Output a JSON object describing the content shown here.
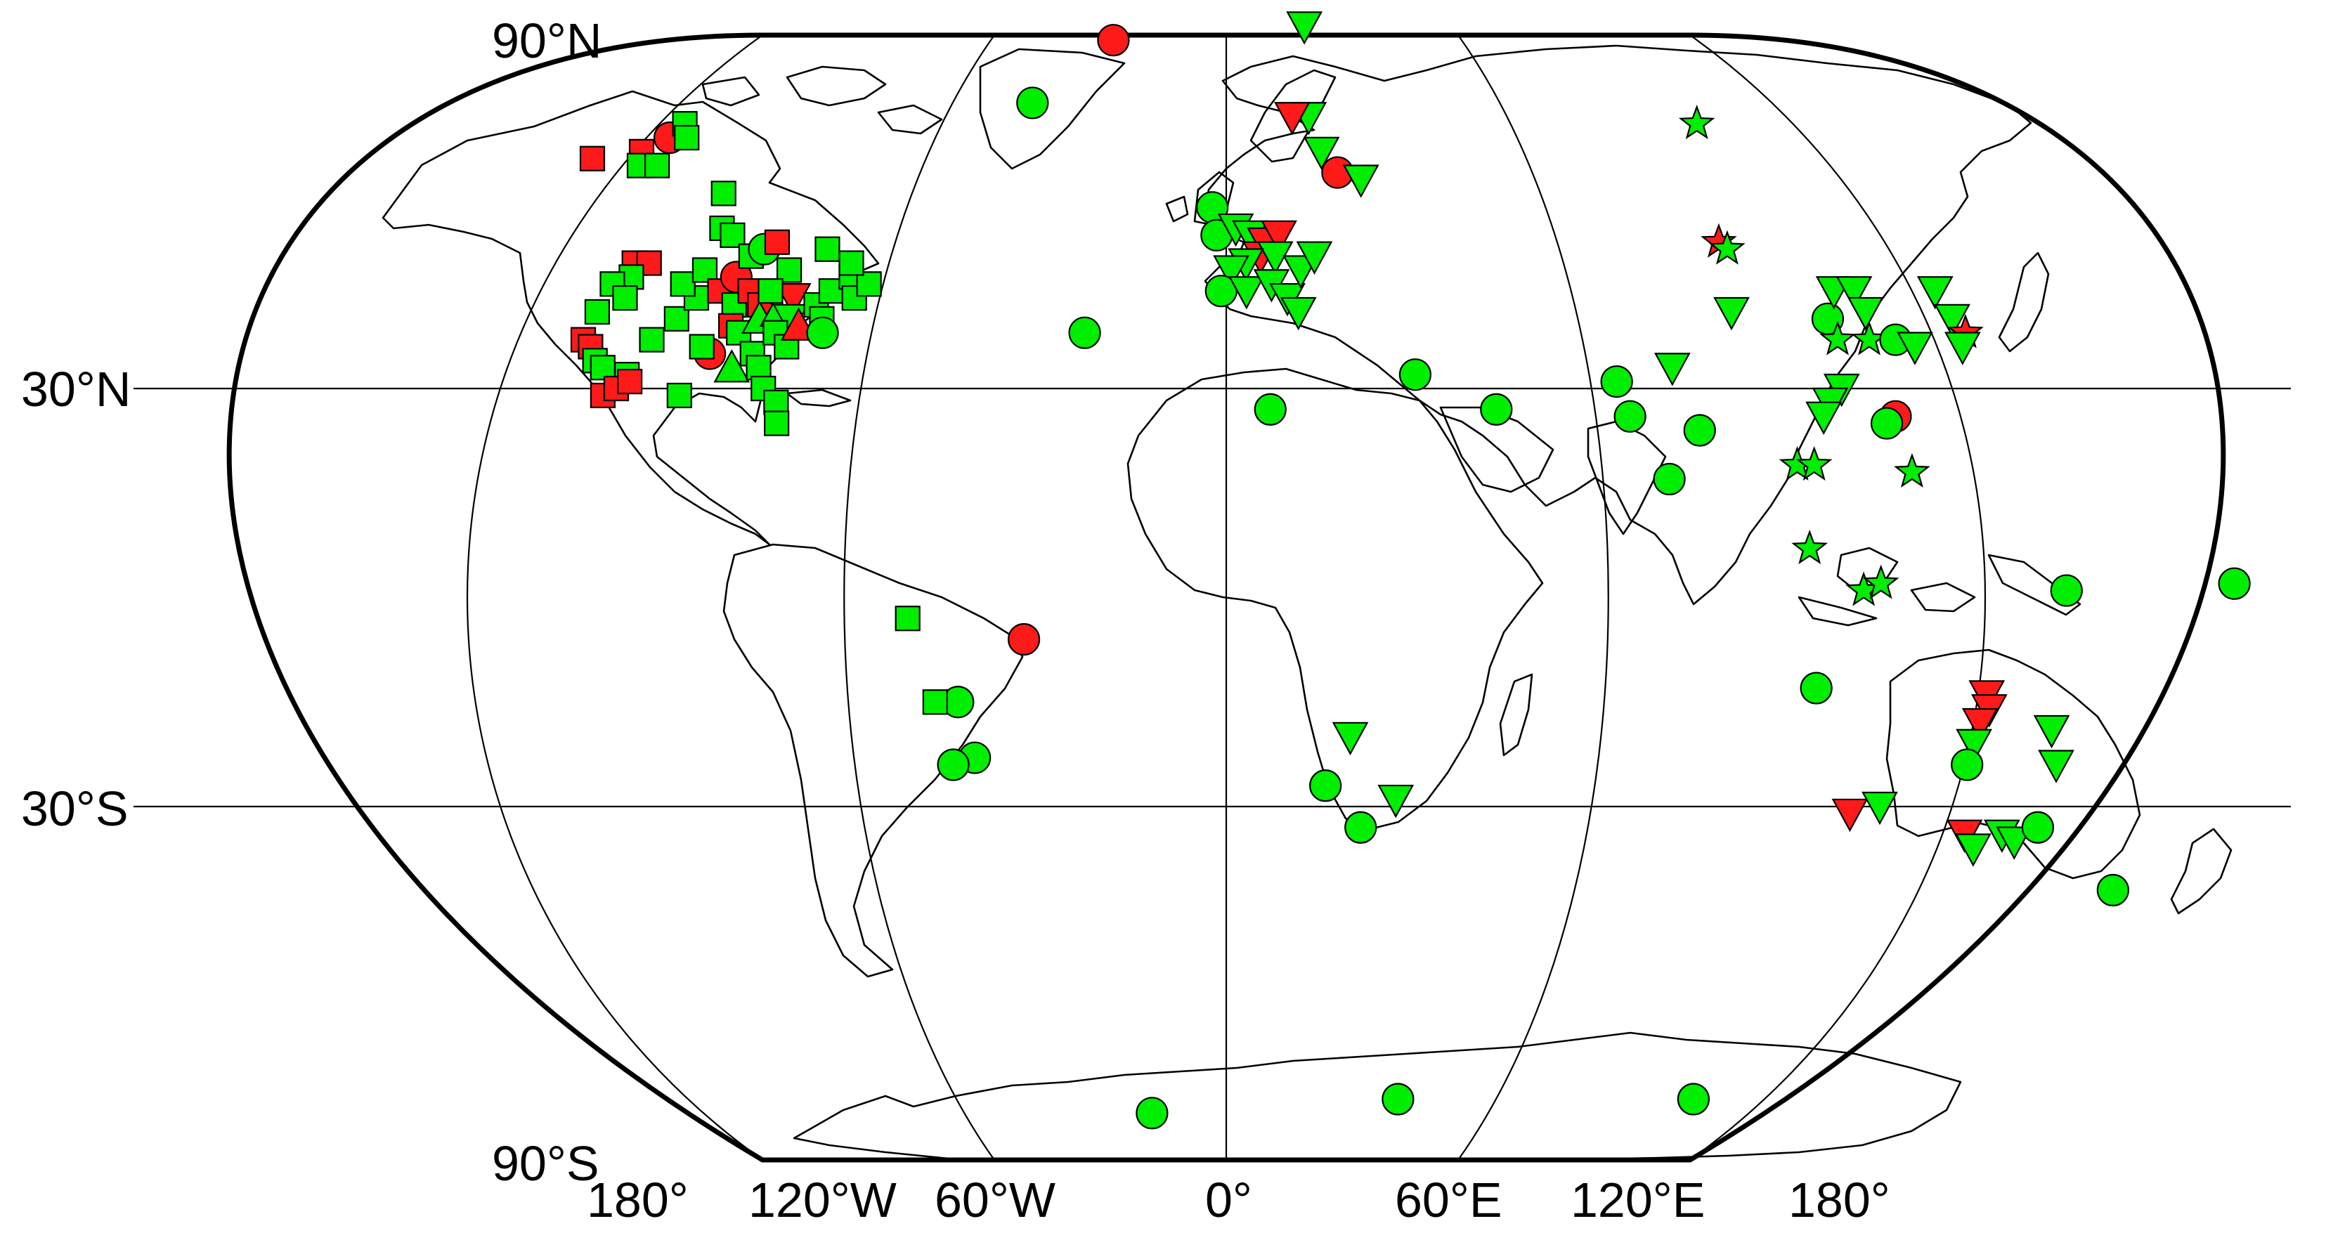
{
  "colors": {
    "green": "#00ee00",
    "red": "#ff1a1a"
  },
  "labels": {
    "lat_90n": "90°N",
    "lat_30n": "30°N",
    "lat_30s": "30°S",
    "lat_90s": "90°S",
    "lon": [
      "180°",
      "120°W",
      "60°W",
      "0°",
      "60°E",
      "120°E",
      "180°"
    ]
  },
  "stations": [
    {
      "lon": -145,
      "lat": 63,
      "shape": "square",
      "color": "red"
    },
    {
      "lon": -131,
      "lat": 66,
      "shape": "circle",
      "color": "red"
    },
    {
      "lon": -135,
      "lat": 64,
      "shape": "square",
      "color": "red"
    },
    {
      "lon": -130,
      "lat": 68,
      "shape": "square",
      "color": "green"
    },
    {
      "lon": -127,
      "lat": 66,
      "shape": "square",
      "color": "green"
    },
    {
      "lon": -133,
      "lat": 62,
      "shape": "square",
      "color": "green"
    },
    {
      "lon": -129,
      "lat": 62,
      "shape": "square",
      "color": "green"
    },
    {
      "lon": -110,
      "lat": 58,
      "shape": "square",
      "color": "green"
    },
    {
      "lon": -106,
      "lat": 53,
      "shape": "square",
      "color": "green"
    },
    {
      "lon": -103,
      "lat": 52,
      "shape": "square",
      "color": "green"
    },
    {
      "lon": -120,
      "lat": 48,
      "shape": "square",
      "color": "red"
    },
    {
      "lon": -117,
      "lat": 48,
      "shape": "square",
      "color": "red"
    },
    {
      "lon": -119,
      "lat": 46,
      "shape": "square",
      "color": "green"
    },
    {
      "lon": -122,
      "lat": 45,
      "shape": "square",
      "color": "green"
    },
    {
      "lon": -118,
      "lat": 43,
      "shape": "square",
      "color": "green"
    },
    {
      "lon": -122,
      "lat": 41,
      "shape": "square",
      "color": "green"
    },
    {
      "lon": -122,
      "lat": 37,
      "shape": "square",
      "color": "red"
    },
    {
      "lon": -120,
      "lat": 36,
      "shape": "square",
      "color": "red"
    },
    {
      "lon": -118,
      "lat": 34,
      "shape": "square",
      "color": "green"
    },
    {
      "lon": -116,
      "lat": 33,
      "shape": "square",
      "color": "green"
    },
    {
      "lon": -111,
      "lat": 32,
      "shape": "square",
      "color": "green"
    },
    {
      "lon": -114,
      "lat": 29,
      "shape": "square",
      "color": "red"
    },
    {
      "lon": -112,
      "lat": 30,
      "shape": "square",
      "color": "red"
    },
    {
      "lon": -110,
      "lat": 31,
      "shape": "square",
      "color": "red"
    },
    {
      "lon": -109,
      "lat": 37,
      "shape": "square",
      "color": "green"
    },
    {
      "lon": -106,
      "lat": 40,
      "shape": "square",
      "color": "green"
    },
    {
      "lon": -104,
      "lat": 43,
      "shape": "square",
      "color": "green"
    },
    {
      "lon": -108,
      "lat": 45,
      "shape": "square",
      "color": "green"
    },
    {
      "lon": -105,
      "lat": 47,
      "shape": "square",
      "color": "green"
    },
    {
      "lon": -100,
      "lat": 44,
      "shape": "square",
      "color": "red"
    },
    {
      "lon": -98,
      "lat": 46,
      "shape": "circle",
      "color": "red"
    },
    {
      "lon": -97,
      "lat": 49,
      "shape": "square",
      "color": "green"
    },
    {
      "lon": -95,
      "lat": 50,
      "shape": "circle",
      "color": "green"
    },
    {
      "lon": -93,
      "lat": 51,
      "shape": "square",
      "color": "red"
    },
    {
      "lon": -96,
      "lat": 42,
      "shape": "square",
      "color": "green"
    },
    {
      "lon": -94,
      "lat": 44,
      "shape": "square",
      "color": "red"
    },
    {
      "lon": -91,
      "lat": 42,
      "shape": "square",
      "color": "red"
    },
    {
      "lon": -95,
      "lat": 39,
      "shape": "square",
      "color": "red"
    },
    {
      "lon": -93,
      "lat": 38,
      "shape": "square",
      "color": "green"
    },
    {
      "lon": -97,
      "lat": 35,
      "shape": "circle",
      "color": "red"
    },
    {
      "lon": -99,
      "lat": 36,
      "shape": "square",
      "color": "green"
    },
    {
      "lon": -92,
      "lat": 33,
      "shape": "triangle-up",
      "color": "green"
    },
    {
      "lon": -89,
      "lat": 35,
      "shape": "square",
      "color": "green"
    },
    {
      "lon": -90,
      "lat": 40,
      "shape": "triangle-up",
      "color": "green"
    },
    {
      "lon": -87,
      "lat": 41,
      "shape": "triangle-up",
      "color": "green"
    },
    {
      "lon": -85,
      "lat": 43,
      "shape": "triangle-down",
      "color": "red"
    },
    {
      "lon": -84,
      "lat": 40,
      "shape": "triangle-down",
      "color": "green"
    },
    {
      "lon": -86,
      "lat": 38,
      "shape": "square",
      "color": "green"
    },
    {
      "lon": -83,
      "lat": 36,
      "shape": "square",
      "color": "green"
    },
    {
      "lon": -82,
      "lat": 39,
      "shape": "triangle-up",
      "color": "red"
    },
    {
      "lon": -80,
      "lat": 42,
      "shape": "square",
      "color": "green"
    },
    {
      "lon": -78,
      "lat": 40,
      "shape": "square",
      "color": "green"
    },
    {
      "lon": -77,
      "lat": 38,
      "shape": "circle",
      "color": "green"
    },
    {
      "lon": -78,
      "lat": 44,
      "shape": "square",
      "color": "green"
    },
    {
      "lon": -75,
      "lat": 46,
      "shape": "square",
      "color": "green"
    },
    {
      "lon": -73,
      "lat": 43,
      "shape": "square",
      "color": "green"
    },
    {
      "lon": -71,
      "lat": 45,
      "shape": "square",
      "color": "green"
    },
    {
      "lon": -76,
      "lat": 48,
      "shape": "square",
      "color": "green"
    },
    {
      "lon": -82,
      "lat": 50,
      "shape": "square",
      "color": "green"
    },
    {
      "lon": -88,
      "lat": 47,
      "shape": "square",
      "color": "green"
    },
    {
      "lon": -90,
      "lat": 44,
      "shape": "square",
      "color": "green"
    },
    {
      "lon": -87,
      "lat": 33,
      "shape": "square",
      "color": "green"
    },
    {
      "lon": -85,
      "lat": 30,
      "shape": "square",
      "color": "green"
    },
    {
      "lon": -82,
      "lat": 28,
      "shape": "square",
      "color": "green"
    },
    {
      "lon": -81,
      "lat": 25,
      "shape": "square",
      "color": "green"
    },
    {
      "lon": -100,
      "lat": 29,
      "shape": "square",
      "color": "green"
    },
    {
      "lon": -48,
      "lat": 71,
      "shape": "circle",
      "color": "green"
    },
    {
      "lon": -31,
      "lat": 80,
      "shape": "circle",
      "color": "red"
    },
    {
      "lon": -27,
      "lat": 38,
      "shape": "circle",
      "color": "green"
    },
    {
      "lon": -55,
      "lat": -3,
      "shape": "square",
      "color": "green"
    },
    {
      "lon": -35,
      "lat": -6,
      "shape": "circle",
      "color": "red"
    },
    {
      "lon": -47,
      "lat": -15,
      "shape": "circle",
      "color": "green"
    },
    {
      "lon": -51,
      "lat": -15,
      "shape": "square",
      "color": "green"
    },
    {
      "lon": -45,
      "lat": -23,
      "shape": "circle",
      "color": "green"
    },
    {
      "lon": -49,
      "lat": -24,
      "shape": "circle",
      "color": "green"
    },
    {
      "lon": 22,
      "lat": 82,
      "shape": "triangle-down",
      "color": "green"
    },
    {
      "lon": 20,
      "lat": 69,
      "shape": "triangle-down",
      "color": "green"
    },
    {
      "lon": 16,
      "lat": 69,
      "shape": "triangle-down",
      "color": "red"
    },
    {
      "lon": 22,
      "lat": 64,
      "shape": "triangle-down",
      "color": "green"
    },
    {
      "lon": 25,
      "lat": 61,
      "shape": "circle",
      "color": "red"
    },
    {
      "lon": 30,
      "lat": 60,
      "shape": "triangle-down",
      "color": "green"
    },
    {
      "lon": -3,
      "lat": 56,
      "shape": "circle",
      "color": "green"
    },
    {
      "lon": -2,
      "lat": 52,
      "shape": "circle",
      "color": "green"
    },
    {
      "lon": 2,
      "lat": 53,
      "shape": "triangle-down",
      "color": "green"
    },
    {
      "lon": 5,
      "lat": 52,
      "shape": "triangle-down",
      "color": "green"
    },
    {
      "lon": 8,
      "lat": 51,
      "shape": "triangle-down",
      "color": "red"
    },
    {
      "lon": 11,
      "lat": 52,
      "shape": "triangle-down",
      "color": "red"
    },
    {
      "lon": 7,
      "lat": 49,
      "shape": "triangle-down",
      "color": "red"
    },
    {
      "lon": 10,
      "lat": 49,
      "shape": "triangle-down",
      "color": "green"
    },
    {
      "lon": 4,
      "lat": 48,
      "shape": "triangle-down",
      "color": "green"
    },
    {
      "lon": 1,
      "lat": 47,
      "shape": "triangle-down",
      "color": "green"
    },
    {
      "lon": -1,
      "lat": 44,
      "shape": "circle",
      "color": "green"
    },
    {
      "lon": 4,
      "lat": 44,
      "shape": "triangle-down",
      "color": "green"
    },
    {
      "lon": 9,
      "lat": 45,
      "shape": "triangle-down",
      "color": "green"
    },
    {
      "lon": 12,
      "lat": 43,
      "shape": "triangle-down",
      "color": "green"
    },
    {
      "lon": 14,
      "lat": 41,
      "shape": "triangle-down",
      "color": "green"
    },
    {
      "lon": 15,
      "lat": 47,
      "shape": "triangle-down",
      "color": "green"
    },
    {
      "lon": 18,
      "lat": 49,
      "shape": "triangle-down",
      "color": "green"
    },
    {
      "lon": 35,
      "lat": 32,
      "shape": "circle",
      "color": "green"
    },
    {
      "lon": 8,
      "lat": 27,
      "shape": "circle",
      "color": "green"
    },
    {
      "lon": 49,
      "lat": 27,
      "shape": "circle",
      "color": "green"
    },
    {
      "lon": 72,
      "lat": 31,
      "shape": "circle",
      "color": "green"
    },
    {
      "lon": 73,
      "lat": 26,
      "shape": "circle",
      "color": "green"
    },
    {
      "lon": 83,
      "lat": 33,
      "shape": "triangle-down",
      "color": "green"
    },
    {
      "lon": 85,
      "lat": 24,
      "shape": "circle",
      "color": "green"
    },
    {
      "lon": 78,
      "lat": 17,
      "shape": "circle",
      "color": "green"
    },
    {
      "lon": 98,
      "lat": 41,
      "shape": "triangle-down",
      "color": "green"
    },
    {
      "lon": 113,
      "lat": 68,
      "shape": "star",
      "color": "green"
    },
    {
      "lon": 102,
      "lat": 51,
      "shape": "star",
      "color": "red"
    },
    {
      "lon": 103,
      "lat": 50,
      "shape": "star",
      "color": "green"
    },
    {
      "lon": 116,
      "lat": 40,
      "shape": "circle",
      "color": "green"
    },
    {
      "lon": 120,
      "lat": 44,
      "shape": "triangle-down",
      "color": "green"
    },
    {
      "lon": 124,
      "lat": 44,
      "shape": "triangle-down",
      "color": "green"
    },
    {
      "lon": 124,
      "lat": 41,
      "shape": "triangle-down",
      "color": "green"
    },
    {
      "lon": 122,
      "lat": 37,
      "shape": "star",
      "color": "green"
    },
    {
      "lon": 116,
      "lat": 37,
      "shape": "star",
      "color": "green"
    },
    {
      "lon": 127,
      "lat": 37,
      "shape": "circle",
      "color": "green"
    },
    {
      "lon": 130,
      "lat": 36,
      "shape": "triangle-down",
      "color": "green"
    },
    {
      "lon": 140,
      "lat": 44,
      "shape": "triangle-down",
      "color": "green"
    },
    {
      "lon": 140,
      "lat": 40,
      "shape": "triangle-down",
      "color": "green"
    },
    {
      "lon": 141,
      "lat": 38,
      "shape": "star",
      "color": "red"
    },
    {
      "lon": 139,
      "lat": 36,
      "shape": "triangle-down",
      "color": "green"
    },
    {
      "lon": 113,
      "lat": 30,
      "shape": "triangle-down",
      "color": "green"
    },
    {
      "lon": 110,
      "lat": 28,
      "shape": "triangle-down",
      "color": "green"
    },
    {
      "lon": 108,
      "lat": 26,
      "shape": "triangle-down",
      "color": "green"
    },
    {
      "lon": 121,
      "lat": 26,
      "shape": "circle",
      "color": "red"
    },
    {
      "lon": 119,
      "lat": 25,
      "shape": "circle",
      "color": "green"
    },
    {
      "lon": 101,
      "lat": 19,
      "shape": "star",
      "color": "green"
    },
    {
      "lon": 104,
      "lat": 19,
      "shape": "star",
      "color": "green"
    },
    {
      "lon": 121,
      "lat": 18,
      "shape": "star",
      "color": "green"
    },
    {
      "lon": 101,
      "lat": 7,
      "shape": "star",
      "color": "green"
    },
    {
      "lon": 110,
      "lat": 1,
      "shape": "star",
      "color": "green"
    },
    {
      "lon": 113,
      "lat": 2,
      "shape": "star",
      "color": "green"
    },
    {
      "lon": 145,
      "lat": 1,
      "shape": "circle",
      "color": "green"
    },
    {
      "lon": 174,
      "lat": 2,
      "shape": "circle",
      "color": "green"
    },
    {
      "lon": 103,
      "lat": -13,
      "shape": "circle",
      "color": "green"
    },
    {
      "lon": 133,
      "lat": -14,
      "shape": "triangle-down",
      "color": "red"
    },
    {
      "lon": 134,
      "lat": -16,
      "shape": "triangle-down",
      "color": "red"
    },
    {
      "lon": 133,
      "lat": -18,
      "shape": "triangle-down",
      "color": "red"
    },
    {
      "lon": 146,
      "lat": -19,
      "shape": "triangle-down",
      "color": "green"
    },
    {
      "lon": 133,
      "lat": -21,
      "shape": "triangle-down",
      "color": "green"
    },
    {
      "lon": 133,
      "lat": -24,
      "shape": "circle",
      "color": "green"
    },
    {
      "lon": 149,
      "lat": -24,
      "shape": "triangle-down",
      "color": "green"
    },
    {
      "lon": 115,
      "lat": -31,
      "shape": "triangle-down",
      "color": "red"
    },
    {
      "lon": 120,
      "lat": -30,
      "shape": "triangle-down",
      "color": "green"
    },
    {
      "lon": 138,
      "lat": -34,
      "shape": "triangle-down",
      "color": "red"
    },
    {
      "lon": 145,
      "lat": -34,
      "shape": "triangle-down",
      "color": "green"
    },
    {
      "lon": 141,
      "lat": -36,
      "shape": "triangle-down",
      "color": "green"
    },
    {
      "lon": 148,
      "lat": -35,
      "shape": "triangle-down",
      "color": "green"
    },
    {
      "lon": 151,
      "lat": -33,
      "shape": "circle",
      "color": "green"
    },
    {
      "lon": 173,
      "lat": -42,
      "shape": "circle",
      "color": "green"
    },
    {
      "lon": 22,
      "lat": -20,
      "shape": "triangle-down",
      "color": "green"
    },
    {
      "lon": 18,
      "lat": -27,
      "shape": "circle",
      "color": "green"
    },
    {
      "lon": 31,
      "lat": -29,
      "shape": "triangle-down",
      "color": "green"
    },
    {
      "lon": 25,
      "lat": -33,
      "shape": "circle",
      "color": "green"
    },
    {
      "lon": -19,
      "lat": -74,
      "shape": "circle",
      "color": "green"
    },
    {
      "lon": 43,
      "lat": -72,
      "shape": "circle",
      "color": "green"
    },
    {
      "lon": 117,
      "lat": -72,
      "shape": "circle",
      "color": "green"
    }
  ]
}
